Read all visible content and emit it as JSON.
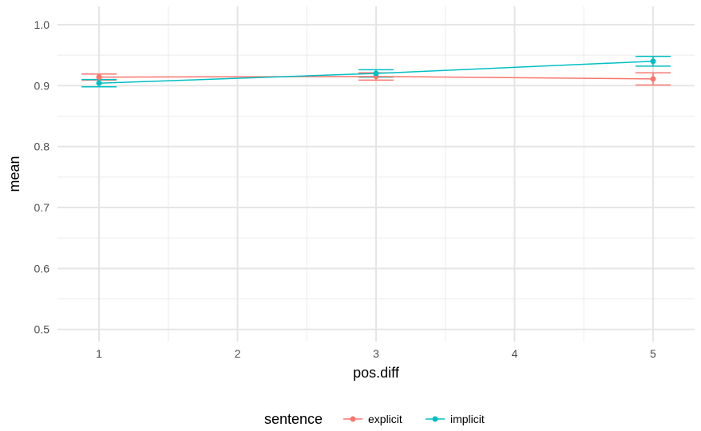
{
  "chart_data": {
    "type": "line",
    "title": "",
    "xlabel": "pos.diff",
    "ylabel": "mean",
    "xlim": [
      0.7,
      5.3
    ],
    "ylim": [
      0.48,
      1.03
    ],
    "x_ticks": [
      1,
      2,
      3,
      4,
      5
    ],
    "y_ticks": [
      0.5,
      0.6,
      0.7,
      0.8,
      0.9,
      1.0
    ],
    "x_tick_labels": [
      "1",
      "2",
      "3",
      "4",
      "5"
    ],
    "y_tick_labels": [
      "0.5",
      "0.6",
      "0.7",
      "0.8",
      "0.9",
      "1.0"
    ],
    "grid": true,
    "legend": {
      "title": "sentence",
      "position": "bottom"
    },
    "series": [
      {
        "name": "explicit",
        "color": "#F8766D",
        "x": [
          1,
          3,
          5
        ],
        "y": [
          0.914,
          0.915,
          0.911
        ],
        "ymin": [
          0.909,
          0.909,
          0.901
        ],
        "ymax": [
          0.919,
          0.921,
          0.921
        ]
      },
      {
        "name": "implicit",
        "color": "#00BFC4",
        "x": [
          1,
          3,
          5
        ],
        "y": [
          0.904,
          0.92,
          0.94
        ],
        "ymin": [
          0.898,
          0.914,
          0.932
        ],
        "ymax": [
          0.91,
          0.926,
          0.948
        ]
      }
    ]
  }
}
